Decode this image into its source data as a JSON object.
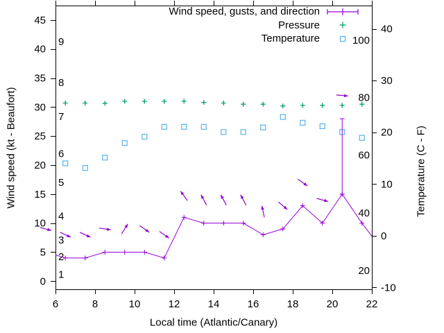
{
  "chart_data": {
    "type": "line",
    "title": "",
    "colors": {
      "wind": "#9400D3",
      "pressure": "#009E73",
      "temperature": "#56B4E9",
      "text": "#000000",
      "background": "#FFFFFF"
    },
    "legend": [
      {
        "label": "Wind speed, gusts, and direction",
        "sample": "errorbar-sample",
        "color": "#9400D3"
      },
      {
        "label": "Pressure",
        "sample": "plus-sample",
        "color": "#009E73"
      },
      {
        "label": "Temperature",
        "sample": "square-sample",
        "color": "#56B4E9"
      }
    ],
    "axes": {
      "x": {
        "label": "Local time (Atlantic/Canary)",
        "range": [
          6,
          22
        ],
        "ticks": [
          6,
          8,
          10,
          12,
          14,
          16,
          18,
          20,
          22
        ],
        "grid": false
      },
      "y_left": {
        "label": "Wind speed (kt - Beaufort)",
        "range": [
          -1.4,
          47.5
        ],
        "ticks": [
          0,
          5,
          10,
          15,
          20,
          25,
          30,
          35,
          40,
          45
        ]
      },
      "y_right": {
        "label": "Temperature (C - F)",
        "range": [
          -10.35,
          44.5
        ],
        "ticks": [
          -10,
          0,
          10,
          20,
          30,
          40
        ]
      },
      "beaufort_inner_labels": {
        "labels": [
          "1",
          "2",
          "3",
          "4",
          "5",
          "6",
          "7",
          "8",
          "9"
        ],
        "values_kt": [
          1.2,
          4.2,
          7.1,
          11.2,
          17.0,
          22.0,
          28.4,
          34.2,
          41.3
        ]
      },
      "fahrenheit_inner_labels": {
        "labels": [
          "20",
          "40",
          "60",
          "80",
          "100"
        ],
        "values_c": [
          -6.7,
          4.4,
          15.6,
          26.7,
          37.8
        ]
      }
    },
    "series": {
      "wind": {
        "name": "Wind speed, gusts, and direction",
        "x": [
          5.5,
          6.5,
          7.5,
          8.5,
          9.5,
          10.5,
          11.5,
          12.5,
          13.5,
          14.5,
          15.5,
          16.5,
          17.5,
          18.5,
          19.5,
          20.5,
          21.5,
          22.5
        ],
        "speed_kt": [
          5,
          4,
          4,
          5,
          5,
          5,
          4,
          11,
          10,
          10,
          10,
          8,
          9,
          13,
          10,
          15,
          10,
          5.5
        ],
        "gust_kt": [
          5,
          4,
          4,
          5,
          5,
          5,
          4,
          11,
          10,
          10,
          10,
          8,
          9,
          13,
          10,
          28,
          10,
          5.5
        ]
      },
      "wind_direction_arrows": {
        "note": "x hour, y kt position, angle deg (0=east, CCW positive)",
        "arrows": [
          [
            5.5,
            9,
            -15
          ],
          [
            6.5,
            8,
            -25
          ],
          [
            7.5,
            8,
            -25
          ],
          [
            8.5,
            9,
            -8
          ],
          [
            9.5,
            9,
            58
          ],
          [
            10.5,
            9,
            -35
          ],
          [
            11.5,
            8,
            -35
          ],
          [
            12.5,
            14.7,
            126
          ],
          [
            13.5,
            14,
            118
          ],
          [
            14.5,
            14,
            118
          ],
          [
            15.5,
            14,
            118
          ],
          [
            16.5,
            12,
            102
          ],
          [
            17.5,
            13,
            -40
          ],
          [
            18.5,
            17,
            -35
          ],
          [
            19.5,
            14,
            -15
          ],
          [
            20.5,
            32,
            -5
          ]
        ]
      },
      "pressure": {
        "name": "Pressure",
        "x": [
          6.5,
          7.5,
          8.5,
          9.5,
          10.5,
          11.5,
          12.5,
          13.5,
          14.5,
          15.5,
          16.5,
          17.5,
          18.5,
          19.5,
          20.5,
          21.5
        ],
        "values": [
          30.7,
          30.7,
          30.65,
          31.0,
          31.0,
          31.0,
          31.0,
          30.8,
          30.7,
          30.5,
          30.5,
          30.2,
          30.3,
          30.3,
          30.3,
          30.5
        ]
      },
      "temperature": {
        "name": "Temperature",
        "x": [
          6.5,
          7.5,
          8.5,
          9.5,
          10.5,
          11.5,
          12.5,
          13.5,
          14.5,
          15.5,
          16.5,
          17.5,
          18.5,
          19.5,
          20.5,
          21.5
        ],
        "values_c": [
          20.3,
          19.5,
          21.3,
          23.8,
          24.9,
          26.6,
          26.6,
          26.6,
          25.7,
          25.7,
          26.5,
          28.3,
          27.3,
          26.7,
          25.7,
          24.7
        ]
      }
    }
  }
}
